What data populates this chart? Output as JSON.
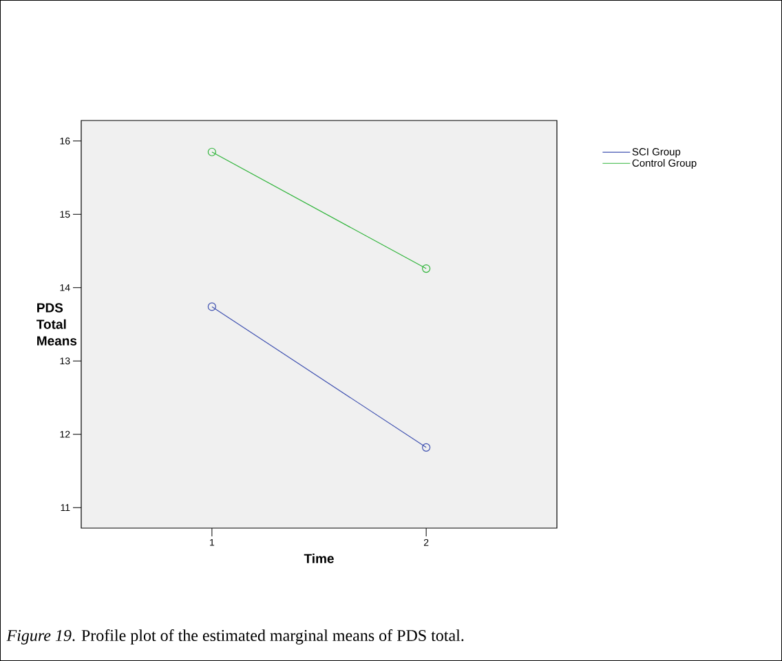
{
  "chart_data": {
    "type": "line",
    "xlabel": "Time",
    "ylabel": "PDS Total Means",
    "categories": [
      "1",
      "2"
    ],
    "series": [
      {
        "name": "SCI Group",
        "color": "#3f51b0",
        "values": [
          13.74,
          11.82
        ]
      },
      {
        "name": "Control Group",
        "color": "#2fb43a",
        "values": [
          15.85,
          14.26
        ]
      }
    ],
    "ylim": [
      10.72,
      16.28
    ],
    "yticks": [
      11,
      12,
      13,
      14,
      15,
      16
    ],
    "marker": "circle",
    "line_style": "solid",
    "grid": false,
    "legend": "top right",
    "annotations": [
      "*Figure 19*. Profile plot of the estimated marginal means of PDS total."
    ]
  }
}
